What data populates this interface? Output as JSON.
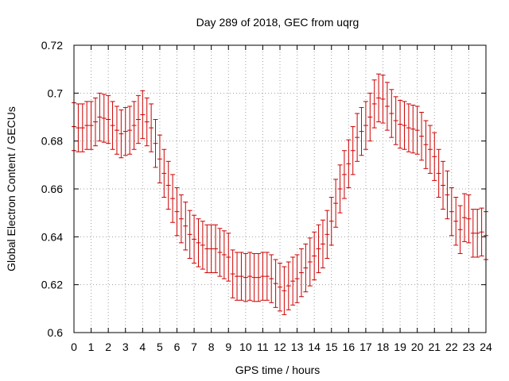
{
  "chart_data": {
    "type": "scatter",
    "title": "Day 289 of 2018, GEC from uqrg",
    "xlabel": "GPS time / hours",
    "ylabel": "Global Electron Content / GECUs",
    "xlim": [
      0,
      24
    ],
    "ylim": [
      0.6,
      0.72
    ],
    "xticks": [
      "0",
      "1",
      "2",
      "3",
      "4",
      "5",
      "6",
      "7",
      "8",
      "9",
      "10",
      "11",
      "12",
      "13",
      "14",
      "15",
      "16",
      "17",
      "18",
      "19",
      "20",
      "21",
      "22",
      "23",
      "24"
    ],
    "yticks": [
      "0.6",
      "0.62",
      "0.64",
      "0.66",
      "0.68",
      "0.7",
      "0.72"
    ],
    "grid": true,
    "error_half_width": 0.01,
    "marker_color": "#cc0000",
    "series": [
      {
        "x": [
          0,
          0.25,
          0.5,
          0.75,
          1,
          1.25,
          1.5,
          1.75,
          2,
          2.25,
          2.5,
          2.75,
          3,
          3.25,
          3.5,
          3.75,
          4,
          4.25,
          4.5,
          4.75,
          5,
          5.25,
          5.5,
          5.75,
          6,
          6.25,
          6.5,
          6.75,
          7,
          7.25,
          7.5,
          7.75,
          8,
          8.25,
          8.5,
          8.75,
          9,
          9.25,
          9.5,
          9.75,
          10,
          10.25,
          10.5,
          10.75,
          11,
          11.25,
          11.5,
          11.75,
          12,
          12.25,
          12.5,
          12.75,
          13,
          13.25,
          13.5,
          13.75,
          14,
          14.25,
          14.5,
          14.75,
          15,
          15.25,
          15.5,
          15.75,
          16,
          16.25,
          16.5,
          16.75,
          17,
          17.25,
          17.5,
          17.75,
          18,
          18.25,
          18.5,
          18.75,
          19,
          19.25,
          19.5,
          19.75,
          20,
          20.25,
          20.5,
          20.75,
          21,
          21.25,
          21.5,
          21.75,
          22,
          22.25,
          22.5,
          22.75,
          23,
          23.25,
          23.5,
          23.75,
          24
        ],
        "y": [
          0.686,
          0.6855,
          0.6855,
          0.6865,
          0.6865,
          0.688,
          0.69,
          0.6895,
          0.689,
          0.6865,
          0.6845,
          0.683,
          0.684,
          0.6845,
          0.6865,
          0.689,
          0.691,
          0.688,
          0.6855,
          0.679,
          0.6725,
          0.6665,
          0.6615,
          0.656,
          0.6505,
          0.6475,
          0.6445,
          0.641,
          0.639,
          0.6375,
          0.6365,
          0.635,
          0.635,
          0.635,
          0.6335,
          0.6325,
          0.6315,
          0.6245,
          0.6235,
          0.6235,
          0.623,
          0.6235,
          0.623,
          0.623,
          0.6235,
          0.6235,
          0.6225,
          0.6205,
          0.619,
          0.6175,
          0.6195,
          0.6215,
          0.6225,
          0.625,
          0.627,
          0.6295,
          0.632,
          0.635,
          0.637,
          0.641,
          0.6465,
          0.654,
          0.66,
          0.666,
          0.6705,
          0.676,
          0.6815,
          0.684,
          0.6865,
          0.69,
          0.6955,
          0.698,
          0.6975,
          0.6945,
          0.6915,
          0.6885,
          0.687,
          0.6865,
          0.6855,
          0.685,
          0.6845,
          0.682,
          0.6785,
          0.6765,
          0.6735,
          0.6665,
          0.6615,
          0.6575,
          0.6505,
          0.6465,
          0.643,
          0.648,
          0.6475,
          0.6415,
          0.6415,
          0.642,
          0.6405
        ]
      }
    ]
  }
}
